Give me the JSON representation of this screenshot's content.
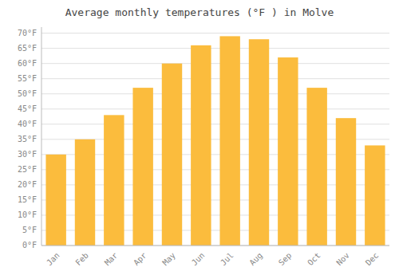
{
  "chart_data": {
    "type": "bar",
    "title": "Average monthly temperatures (°F ) in Molve",
    "categories": [
      "Jan",
      "Feb",
      "Mar",
      "Apr",
      "May",
      "Jun",
      "Jul",
      "Aug",
      "Sep",
      "Oct",
      "Nov",
      "Dec"
    ],
    "values": [
      30,
      35,
      43,
      52,
      60,
      66,
      69,
      68,
      62,
      52,
      42,
      33
    ],
    "color": "#FBBC3D",
    "ylim": [
      0,
      72
    ],
    "yticks": [
      {
        "value": 0,
        "label": "0°F"
      },
      {
        "value": 5,
        "label": "5°F"
      },
      {
        "value": 10,
        "label": "10°F"
      },
      {
        "value": 15,
        "label": "15°F"
      },
      {
        "value": 20,
        "label": "20°F"
      },
      {
        "value": 25,
        "label": "25°F"
      },
      {
        "value": 30,
        "label": "30°F"
      },
      {
        "value": 35,
        "label": "35°F"
      },
      {
        "value": 40,
        "label": "40°F"
      },
      {
        "value": 45,
        "label": "45°F"
      },
      {
        "value": 50,
        "label": "50°F"
      },
      {
        "value": 55,
        "label": "55°F"
      },
      {
        "value": 60,
        "label": "60°F"
      },
      {
        "value": 65,
        "label": "65°F"
      },
      {
        "value": 70,
        "label": "70°F"
      }
    ],
    "grid": true
  }
}
